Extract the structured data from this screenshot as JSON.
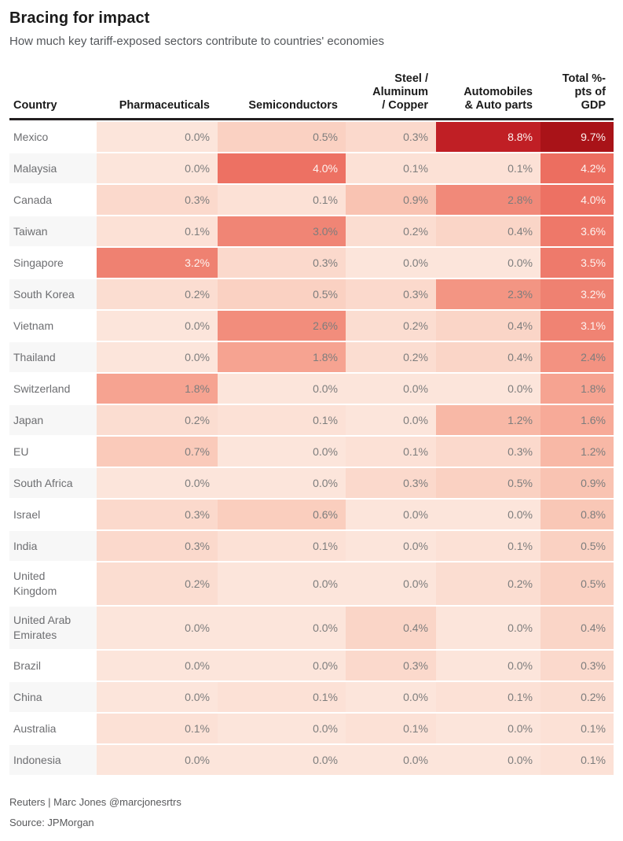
{
  "title": "Bracing for impact",
  "subtitle": "How much key tariff-exposed sectors contribute to countries' economies",
  "table": {
    "columns": [
      "Country",
      "Pharmaceuticals",
      "Semiconductors",
      "Steel /\nAluminum\n/ Copper",
      "Automobiles\n& Auto parts",
      "Total %-\npts of\nGDP"
    ]
  },
  "footer": {
    "byline": "Reuters | Marc Jones @marcjonesrtrs",
    "source": "Source: JPMorgan"
  },
  "colors": {
    "header_rule": "#231f20",
    "label_text": "#6d6e71",
    "value_text_light_bg": "#7d7d7d",
    "value_text_dark_bg": "#fdf3f0",
    "row_alt_bg": "#f7f7f7",
    "row_bg": "#ffffff",
    "white_text_threshold": 3.1,
    "scale_stops": [
      [
        0.0,
        "#fce5db"
      ],
      [
        0.5,
        "#fad1c2"
      ],
      [
        1.0,
        "#f9c0ae"
      ],
      [
        1.5,
        "#f7ad9b"
      ],
      [
        2.0,
        "#f59d8b"
      ],
      [
        2.5,
        "#f28f7e"
      ],
      [
        3.0,
        "#f08575"
      ],
      [
        3.5,
        "#ee7a6b"
      ],
      [
        4.2,
        "#ec6e60"
      ],
      [
        6.5,
        "#d8473e"
      ],
      [
        8.8,
        "#c01f25"
      ],
      [
        9.7,
        "#a91318"
      ]
    ]
  },
  "chart_data": {
    "type": "heatmap",
    "title": "Bracing for impact",
    "subtitle": "How much key tariff-exposed sectors contribute to countries' economies",
    "unit": "% of GDP",
    "value_format": "one-decimal-percent",
    "color_range": [
      0.0,
      9.7
    ],
    "categories": [
      "Mexico",
      "Malaysia",
      "Canada",
      "Taiwan",
      "Singapore",
      "South Korea",
      "Vietnam",
      "Thailand",
      "Switzerland",
      "Japan",
      "EU",
      "South Africa",
      "Israel",
      "India",
      "United Kingdom",
      "United Arab Emirates",
      "Brazil",
      "China",
      "Australia",
      "Indonesia"
    ],
    "series": [
      {
        "name": "Pharmaceuticals",
        "values": [
          0.0,
          0.0,
          0.3,
          0.1,
          3.2,
          0.2,
          0.0,
          0.0,
          1.8,
          0.2,
          0.7,
          0.0,
          0.3,
          0.3,
          0.2,
          0.0,
          0.0,
          0.0,
          0.1,
          0.0
        ]
      },
      {
        "name": "Semiconductors",
        "values": [
          0.5,
          4.0,
          0.1,
          3.0,
          0.3,
          0.5,
          2.6,
          1.8,
          0.0,
          0.1,
          0.0,
          0.0,
          0.6,
          0.1,
          0.0,
          0.0,
          0.0,
          0.1,
          0.0,
          0.0
        ]
      },
      {
        "name": "Steel / Aluminum / Copper",
        "values": [
          0.3,
          0.1,
          0.9,
          0.2,
          0.0,
          0.3,
          0.2,
          0.2,
          0.0,
          0.0,
          0.1,
          0.3,
          0.0,
          0.0,
          0.0,
          0.4,
          0.3,
          0.0,
          0.1,
          0.0
        ]
      },
      {
        "name": "Automobiles & Auto parts",
        "values": [
          8.8,
          0.1,
          2.8,
          0.4,
          0.0,
          2.3,
          0.4,
          0.4,
          0.0,
          1.2,
          0.3,
          0.5,
          0.0,
          0.1,
          0.2,
          0.0,
          0.0,
          0.1,
          0.0,
          0.0
        ]
      },
      {
        "name": "Total %-pts of GDP",
        "values": [
          9.7,
          4.2,
          4.0,
          3.6,
          3.5,
          3.2,
          3.1,
          2.4,
          1.8,
          1.6,
          1.2,
          0.9,
          0.8,
          0.5,
          0.5,
          0.4,
          0.3,
          0.2,
          0.1,
          0.1
        ]
      }
    ],
    "legend": "off",
    "source": "JPMorgan",
    "credit": "Reuters | Marc Jones @marcjonesrtrs"
  }
}
